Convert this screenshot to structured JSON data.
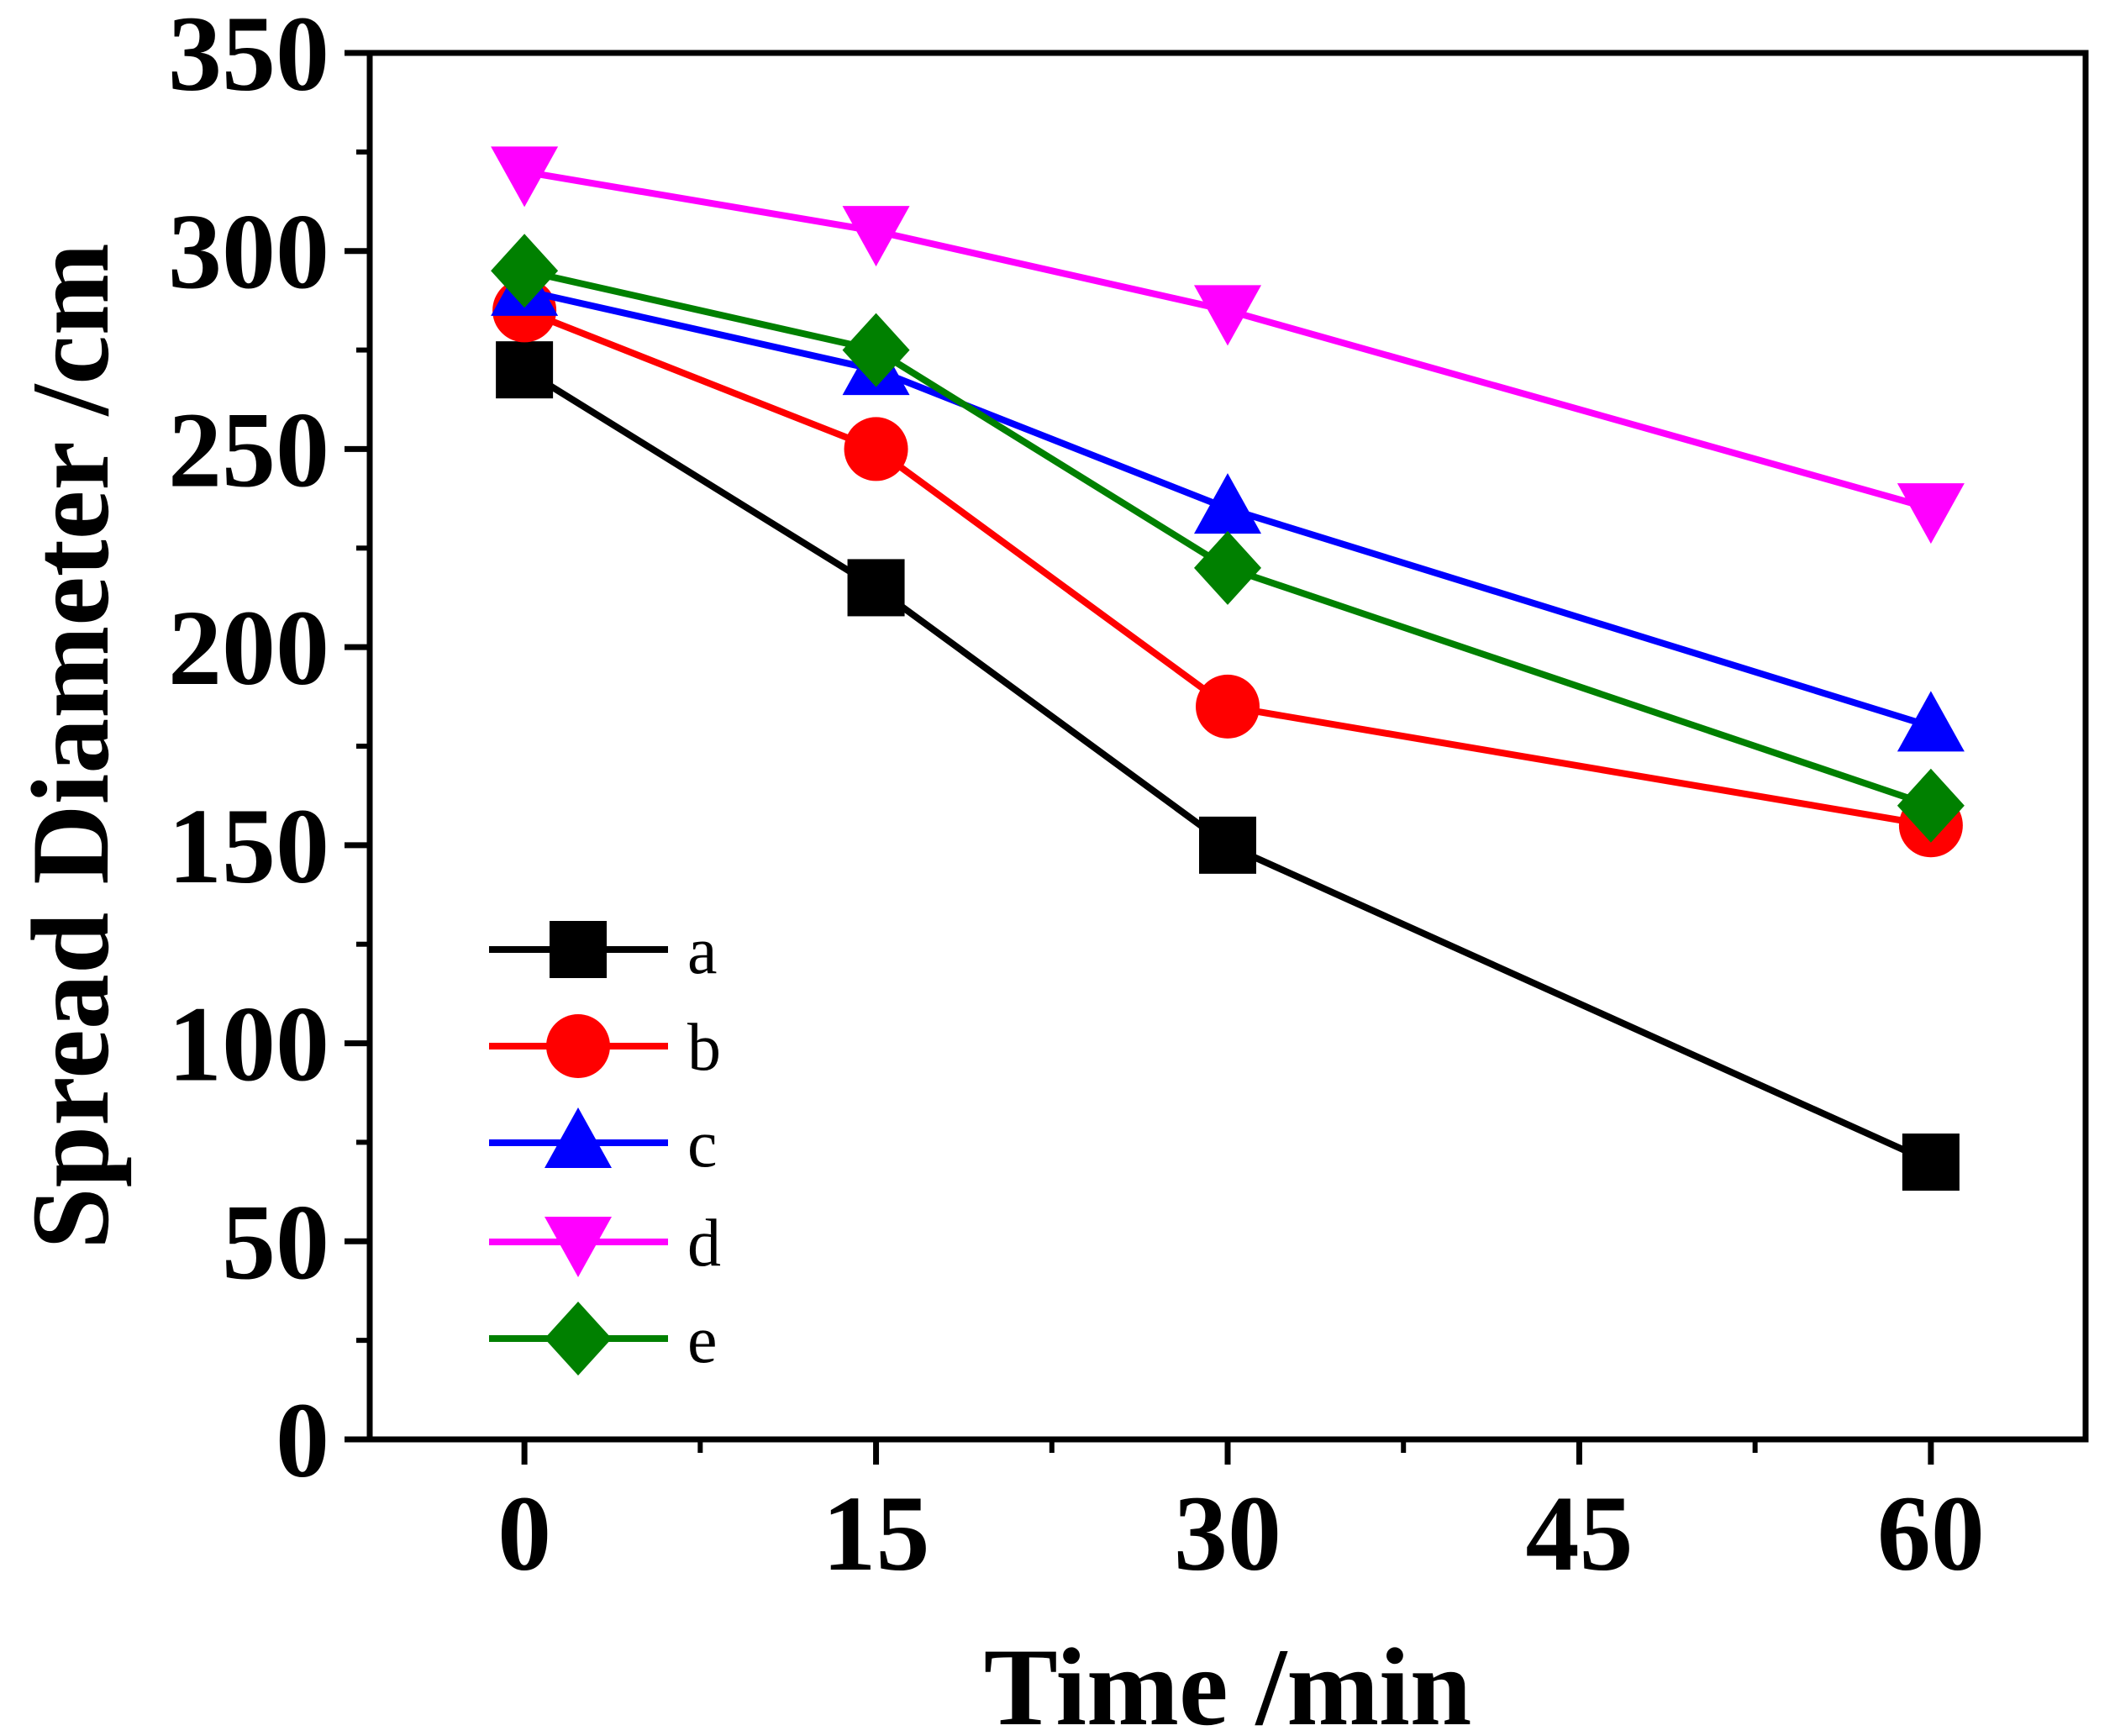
{
  "chart_data": {
    "type": "line",
    "title": "",
    "xlabel": "Time /min",
    "ylabel": "Spread Diameter /cm",
    "xlim": [
      -6.6,
      66.6
    ],
    "ylim": [
      0,
      350
    ],
    "x_ticks": [
      0,
      15,
      30,
      45,
      60
    ],
    "y_ticks": [
      0,
      50,
      100,
      150,
      200,
      250,
      300,
      350
    ],
    "x_minor_step": 7.5,
    "y_minor_step": 25,
    "grid": false,
    "legend_position": "bottom-left",
    "x": [
      0,
      15,
      30,
      60
    ],
    "series": [
      {
        "name": "a",
        "values": [
          270,
          215,
          150,
          70
        ],
        "color": "#000000",
        "marker": "square"
      },
      {
        "name": "b",
        "values": [
          285,
          250,
          185,
          155
        ],
        "color": "#ff0000",
        "marker": "circle"
      },
      {
        "name": "c",
        "values": [
          290,
          270,
          235,
          180
        ],
        "color": "#0000ff",
        "marker": "triangle-up"
      },
      {
        "name": "d",
        "values": [
          320,
          305,
          285,
          235
        ],
        "color": "#ff00ff",
        "marker": "triangle-down"
      },
      {
        "name": "e",
        "values": [
          295,
          275,
          220,
          160
        ],
        "color": "#008000",
        "marker": "diamond"
      }
    ]
  }
}
